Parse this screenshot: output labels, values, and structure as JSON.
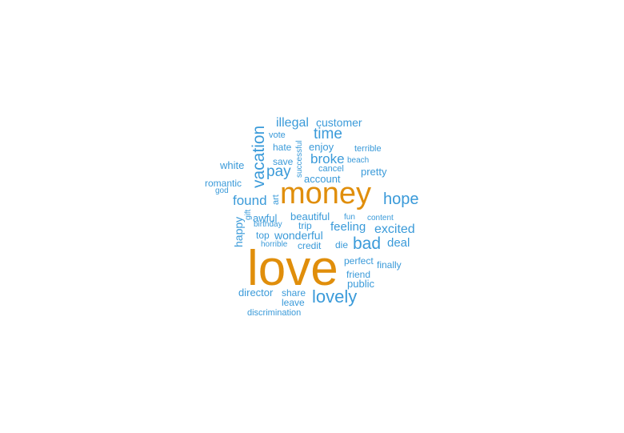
{
  "colors": {
    "primary": "#3a9ad9",
    "highlight": "#e08e0b",
    "background": "#ffffff"
  },
  "words": {
    "love": "love",
    "money": "money",
    "lovely": "lovely",
    "bad": "bad",
    "hope": "hope",
    "vacation": "vacation",
    "time": "time",
    "pay": "pay",
    "found": "found",
    "broke": "broke",
    "excited": "excited",
    "illegal": "illegal",
    "customer": "customer",
    "feeling": "feeling",
    "wonderful": "wonderful",
    "deal": "deal",
    "happy": "happy",
    "pretty": "pretty",
    "account": "account",
    "enjoy": "enjoy",
    "beautiful": "beautiful",
    "awful": "awful",
    "white": "white",
    "director": "director",
    "public": "public",
    "friend": "friend",
    "finally": "finally",
    "perfect": "perfect",
    "share": "share",
    "leave": "leave",
    "romantic": "romantic",
    "top": "top",
    "trip": "trip",
    "terrible": "terrible",
    "die": "die",
    "credit": "credit",
    "hate": "hate",
    "save": "save",
    "cancel": "cancel",
    "vote": "vote",
    "successful": "successful",
    "beach": "beach",
    "fun": "fun",
    "content": "content",
    "birthday": "birthday",
    "horrible": "horrible",
    "discrimination": "discrimination",
    "god": "god",
    "art": "art",
    "gift": "gift"
  }
}
